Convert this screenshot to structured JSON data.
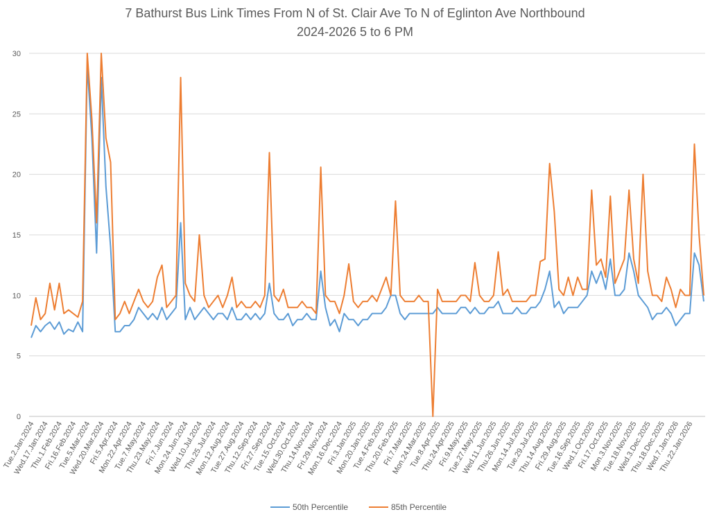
{
  "chart_data": {
    "type": "line",
    "title": "7 Bathurst Bus Link Times From N of St. Clair Ave To N of Eglinton Ave Northbound",
    "subtitle": "2024-2026 5 to 6 PM",
    "categories": [
      "Tue.2.Jan.2024",
      null,
      null,
      "Wed.17.Jan.2024",
      null,
      null,
      "Thu.1.Feb.2024",
      null,
      null,
      "Fri.16.Feb.2024",
      null,
      null,
      "Tue.5.Mar.2024",
      null,
      null,
      "Wed.20.Mar.2024",
      null,
      null,
      "Fri.5.Apr.2024",
      null,
      null,
      "Mon.22.Apr.2024",
      null,
      null,
      "Tue.7.May.2024",
      null,
      null,
      "Thu.23.May.2024",
      null,
      null,
      "Fri.7.Jun.2024",
      null,
      null,
      "Mon.24.Jun.2024",
      null,
      null,
      "Wed.10.Jul.2024",
      null,
      null,
      "Thu.25.Jul.2024",
      null,
      null,
      "Mon.12.Aug.2024",
      null,
      null,
      "Tue.27.Aug.2024",
      null,
      null,
      "Thu.12.Sep.2024",
      null,
      null,
      "Fri.27.Sep.2024",
      null,
      null,
      "Tue.15.Oct.2024",
      null,
      null,
      "Wed.30.Oct.2024",
      null,
      null,
      "Thu.14.Nov.2024",
      null,
      null,
      "Fri.29.Nov.2024",
      null,
      null,
      "Mon.16.Dec.2024",
      null,
      null,
      "Fri.3.Jan.2025",
      null,
      null,
      "Mon.20.Jan.2025",
      null,
      null,
      "Tue.4.Feb.2025",
      null,
      null,
      "Thu.20.Feb.2025",
      null,
      null,
      "Fri.7.Mar.2025",
      null,
      null,
      "Mon.24.Mar.2025",
      null,
      null,
      "Tue.8.Apr.2025",
      null,
      null,
      "Thu.24.Apr.2025",
      null,
      null,
      "Fri.9.May.2025",
      null,
      null,
      "Tue.27.May.2025",
      null,
      null,
      "Wed.11.Jun.2025",
      null,
      null,
      "Thu.26.Jun.2025",
      null,
      null,
      "Mon.14.Jul.2025",
      null,
      null,
      "Tue.29.Jul.2025",
      null,
      null,
      "Thu.14.Aug.2025",
      null,
      null,
      "Fri.29.Aug.2025",
      null,
      null,
      "Tue.16.Sep.2025",
      null,
      null,
      "Wed.1.Oct.2025",
      null,
      null,
      "Fri.17.Oct.2025",
      null,
      null,
      "Mon.3.Nov.2025",
      null,
      null,
      "Tue.18.Nov.2025",
      null,
      null,
      "Wed.3.Dec.2025",
      null,
      null,
      "Thu.18.Dec.2025",
      null,
      null,
      "Wed.7.Jan.2026",
      null,
      null,
      "Thu.22.Jan.2026",
      null,
      null,
      null
    ],
    "series": [
      {
        "name": "50th Percentile",
        "color": "#5b9bd5",
        "values": [
          6.5,
          7.5,
          7,
          7.5,
          7.8,
          7.2,
          7.8,
          6.8,
          7.2,
          7,
          7.8,
          7,
          29,
          23,
          13.5,
          28,
          19,
          14,
          7,
          7,
          7.5,
          7.5,
          8,
          9,
          8.5,
          8,
          8.5,
          8,
          9,
          8,
          8.5,
          9,
          16,
          8,
          9,
          8,
          8.5,
          9,
          8.5,
          8,
          8.5,
          8.5,
          8,
          9,
          8,
          8,
          8.5,
          8,
          8.5,
          8,
          8.5,
          11,
          8.5,
          8,
          8,
          8.5,
          7.5,
          8,
          8,
          8.5,
          8,
          8,
          12,
          9,
          7.5,
          8,
          7,
          8.5,
          8,
          8,
          7.5,
          8,
          8,
          8.5,
          8.5,
          8.5,
          9,
          10,
          10,
          8.5,
          8,
          8.5,
          8.5,
          8.5,
          8.5,
          8.5,
          8.5,
          9,
          8.5,
          8.5,
          8.5,
          8.5,
          9,
          9,
          8.5,
          9,
          8.5,
          8.5,
          9,
          9,
          9.5,
          8.5,
          8.5,
          8.5,
          9,
          8.5,
          8.5,
          9,
          9,
          9.5,
          10.5,
          12,
          9,
          9.5,
          8.5,
          9,
          9,
          9,
          9.5,
          10,
          12,
          11,
          12,
          10.5,
          13,
          10,
          10,
          10.5,
          13.5,
          12,
          10,
          9.5,
          9,
          8,
          8.5,
          8.5,
          9,
          8.5,
          7.5,
          8,
          8.5,
          8.5,
          13.5,
          12.5,
          9.5
        ]
      },
      {
        "name": "85th Percentile",
        "color": "#ed7d31",
        "values": [
          7.5,
          9.8,
          8,
          8.5,
          11,
          8.8,
          11,
          8.5,
          8.8,
          8.5,
          8.2,
          9.5,
          30,
          24.5,
          16,
          30,
          23,
          21,
          8,
          8.5,
          9.5,
          8.5,
          9.5,
          10.5,
          9.5,
          9,
          9.5,
          11.5,
          12.5,
          9,
          9.5,
          10,
          28,
          11,
          10,
          9.5,
          15,
          10,
          9,
          9.5,
          10,
          9,
          10,
          11.5,
          9,
          9.5,
          9,
          9,
          9.5,
          9,
          10,
          21.8,
          10,
          9.5,
          10.5,
          9,
          9,
          9,
          9.5,
          9,
          9,
          8.5,
          20.6,
          10,
          9.5,
          9.5,
          8.5,
          10,
          12.6,
          9.5,
          9,
          9.5,
          9.5,
          10,
          9.5,
          10.5,
          11.5,
          10,
          17.8,
          10,
          9.5,
          9.5,
          9.5,
          10,
          9.5,
          9.5,
          0,
          10.5,
          9.5,
          9.5,
          9.5,
          9.5,
          10,
          10,
          9.5,
          12.7,
          10,
          9.5,
          9.5,
          10,
          13.6,
          10,
          10.5,
          9.5,
          9.5,
          9.5,
          9.5,
          10,
          10,
          12.8,
          13,
          20.9,
          16.9,
          10.5,
          10,
          11.5,
          10,
          11.5,
          10.5,
          10.5,
          18.7,
          12.5,
          13,
          11.5,
          18.2,
          11,
          12,
          13,
          18.7,
          13,
          11,
          20,
          12,
          10,
          10,
          9.5,
          11.5,
          10.5,
          9,
          10.5,
          10,
          10,
          22.5,
          15,
          10
        ]
      }
    ],
    "ylim": [
      0,
      30
    ],
    "yticks": [
      0,
      5,
      10,
      15,
      20,
      25,
      30
    ],
    "grid": true,
    "legend": "bottom"
  }
}
